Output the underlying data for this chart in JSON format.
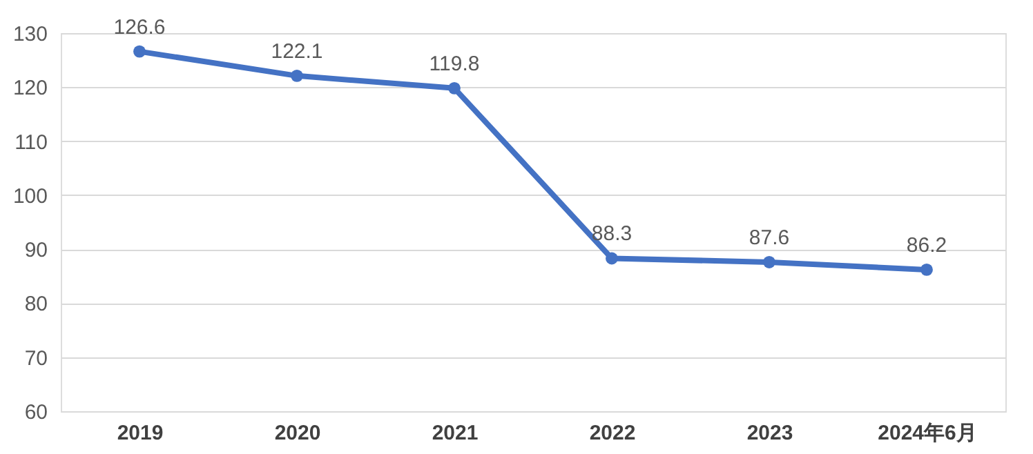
{
  "chart_data": {
    "type": "line",
    "categories": [
      "2019",
      "2020",
      "2021",
      "2022",
      "2023",
      "2024年6月"
    ],
    "series": [
      {
        "color": "#4472c4",
        "values": [
          126.6,
          122.1,
          119.8,
          88.3,
          87.6,
          86.2
        ]
      }
    ],
    "ylim": [
      60,
      130
    ],
    "yticks": [
      60,
      70,
      80,
      90,
      100,
      110,
      120,
      130
    ],
    "grid": "y",
    "marker": "circle",
    "line_style": "solid",
    "data_labels": true
  }
}
